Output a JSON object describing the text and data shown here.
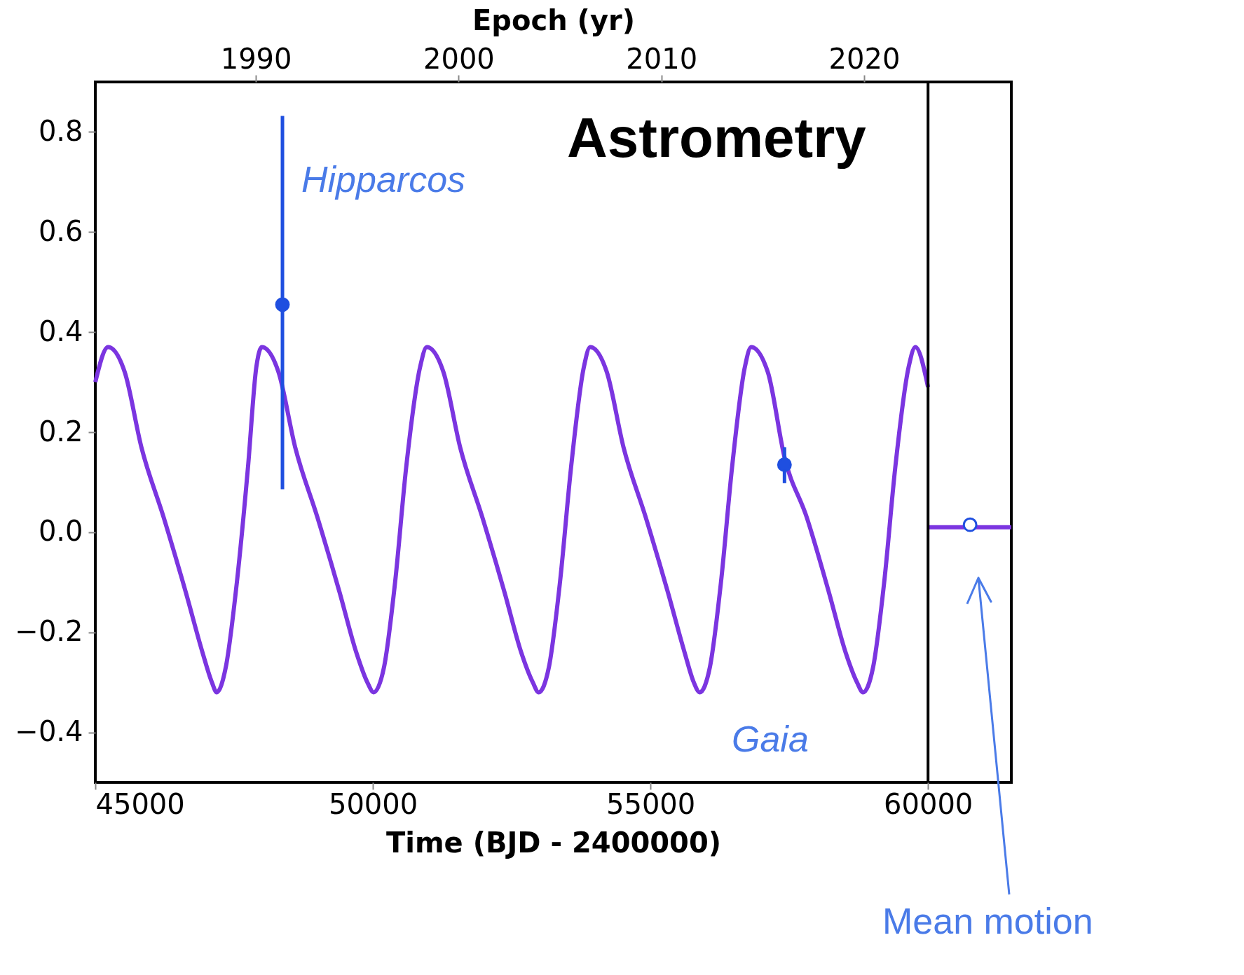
{
  "chart_data": {
    "type": "line",
    "title": "Astrometry",
    "xlabel": "Time (BJD - 2400000)",
    "x2label": "Epoch (yr)",
    "xlim": [
      45000,
      61500
    ],
    "xticks": [
      45000,
      50000,
      55000,
      60000
    ],
    "x2lim": [
      1982.08,
      2027.26
    ],
    "x2ticks": [
      1990,
      2000,
      2010,
      2020
    ],
    "ylim": [
      -0.5,
      0.9
    ],
    "yticks": [
      {
        "value": -0.4,
        "label": "−0.4"
      },
      {
        "value": -0.2,
        "label": "−0.2"
      },
      {
        "value": 0,
        "label": "0.0"
      },
      {
        "value": 0.2,
        "label": "0.2"
      },
      {
        "value": 0.4,
        "label": "0.4"
      },
      {
        "value": 0.6,
        "label": "0.6"
      },
      {
        "value": 0.8,
        "label": "0.8"
      }
    ],
    "grid": false,
    "line_style": "solid",
    "series": [
      {
        "color": "#7b35e0",
        "x": [
          45000,
          45230,
          45530,
          45830,
          46230,
          46630,
          46930,
          47100,
          47186,
          47350,
          47550,
          47750,
          47900,
          48000,
          48300,
          48600,
          49000,
          49400,
          49700,
          49900,
          50014,
          50200,
          50400,
          50600,
          50850,
          50971,
          51271,
          51571,
          51971,
          52371,
          52671,
          52880,
          52986,
          53170,
          53370,
          53570,
          53800,
          53914,
          54214,
          54514,
          54914,
          55314,
          55614,
          55780,
          55886,
          56070,
          56270,
          56470,
          56700,
          56814,
          57114,
          57414,
          57814,
          58214,
          58514,
          58720,
          58829,
          59010,
          59210,
          59410,
          59650,
          59771,
          60000
        ],
        "values": [
          0.3,
          0.37,
          0.32,
          0.17,
          0.03,
          -0.12,
          -0.24,
          -0.3,
          -0.32,
          -0.27,
          -0.1,
          0.13,
          0.33,
          0.37,
          0.32,
          0.17,
          0.03,
          -0.12,
          -0.24,
          -0.3,
          -0.32,
          -0.27,
          -0.1,
          0.13,
          0.33,
          0.37,
          0.32,
          0.17,
          0.03,
          -0.12,
          -0.24,
          -0.3,
          -0.32,
          -0.27,
          -0.1,
          0.13,
          0.33,
          0.37,
          0.32,
          0.17,
          0.03,
          -0.12,
          -0.24,
          -0.3,
          -0.32,
          -0.27,
          -0.1,
          0.13,
          0.33,
          0.37,
          0.32,
          0.15,
          0.03,
          -0.12,
          -0.24,
          -0.3,
          -0.32,
          -0.27,
          -0.1,
          0.13,
          0.33,
          0.37,
          0.29
        ]
      },
      {
        "type": "line",
        "color": "#7b35e0",
        "x": [
          60000,
          61500
        ],
        "values": [
          0.01,
          0.01
        ]
      },
      {
        "type": "scatter",
        "color": "#1f4fe0",
        "marker": "circle",
        "x": [
          48371,
          57414
        ],
        "values": [
          0.455,
          0.135
        ],
        "errors": [
          [
            0.086,
            0.832
          ],
          [
            0.098,
            0.17
          ]
        ]
      },
      {
        "type": "scatter",
        "color": "#ffffff",
        "marker": "circle",
        "x": [
          60757
        ],
        "values": [
          0.015
        ]
      }
    ],
    "ref_lines": [
      {
        "axis": "x",
        "value": 60000,
        "color": "#000000"
      }
    ],
    "annotations": [
      "Hipparcos",
      "Gaia",
      "Mean motion"
    ]
  }
}
